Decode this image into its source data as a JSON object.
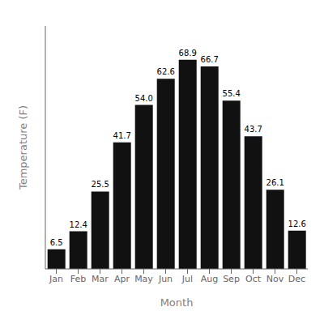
{
  "chart_data": {
    "type": "bar",
    "xlabel": "Month",
    "ylabel": "Temperature (F)",
    "categories": [
      "Jan",
      "Feb",
      "Mar",
      "Apr",
      "May",
      "Jun",
      "Jul",
      "Aug",
      "Sep",
      "Oct",
      "Nov",
      "Dec"
    ],
    "values": [
      6.5,
      12.4,
      25.5,
      41.7,
      54.0,
      62.6,
      68.9,
      66.7,
      55.4,
      43.7,
      26.1,
      12.6
    ],
    "value_labels": [
      "6.5",
      "12.4",
      "25.5",
      "41.7",
      "54.0",
      "62.6",
      "68.9",
      "66.7",
      "55.4",
      "43.7",
      "26.1",
      "12.6"
    ],
    "data_labels": true,
    "color": "#111111",
    "ylim": [
      0,
      80
    ],
    "tick_labels": "x",
    "grid": false
  }
}
